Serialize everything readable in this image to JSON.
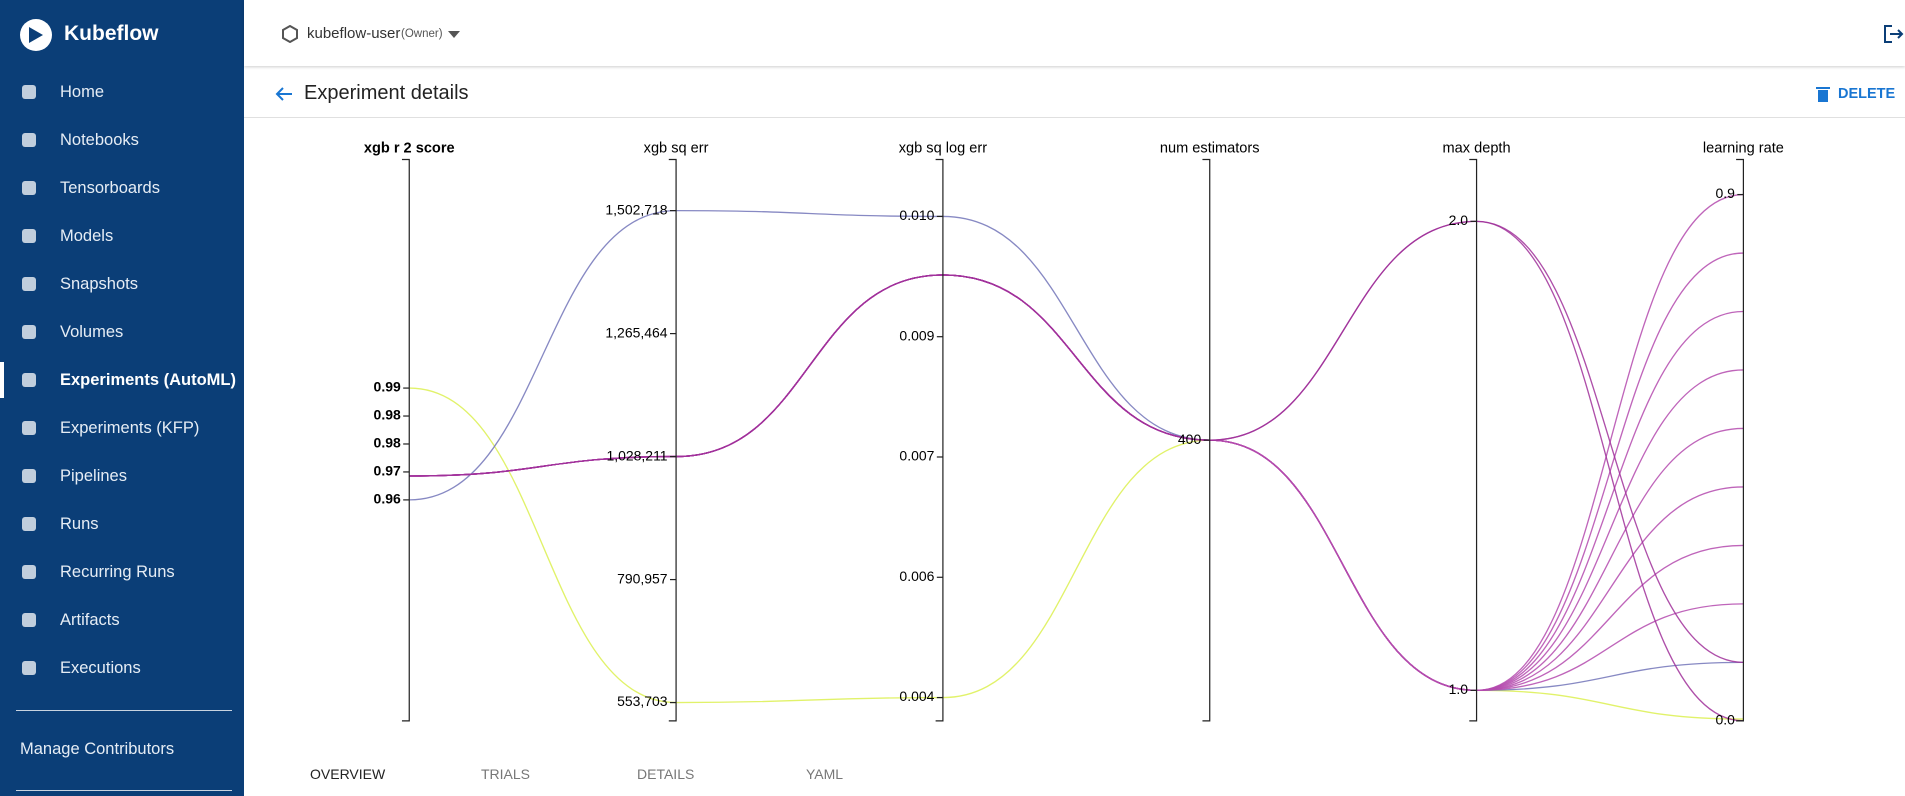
{
  "sidebar": {
    "brand": "Kubeflow",
    "items": [
      "Home",
      "Notebooks",
      "Tensorboards",
      "Models",
      "Snapshots",
      "Volumes",
      "Experiments (AutoML)",
      "Experiments (KFP)",
      "Pipelines",
      "Runs",
      "Recurring Runs",
      "Artifacts",
      "Executions"
    ],
    "active": 6,
    "footer": "Manage Contributors"
  },
  "topbar": {
    "namespace": "kubeflow-user",
    "role": "(Owner)"
  },
  "header": {
    "title": "Experiment details",
    "action": "DELETE"
  },
  "tabs": [
    "OVERVIEW",
    "TRIALS",
    "DETAILS",
    "YAML"
  ],
  "chart_data": {
    "type": "parallel",
    "dimensions": [
      {
        "label": "xgb r 2 score",
        "ylim": [
          0.9147,
          1.0392
        ],
        "yticks": [
          {
            "value": 0.9885,
            "label": "0.99"
          },
          {
            "value": 0.9823,
            "label": "0.98"
          },
          {
            "value": 0.9761,
            "label": "0.98"
          },
          {
            "value": 0.9699,
            "label": "0.97"
          },
          {
            "value": 0.9637,
            "label": "0.96"
          }
        ]
      },
      {
        "label": "xgb sq err",
        "ylim": [
          518467,
          1601378
        ],
        "yticks": [
          {
            "value": 553703,
            "label": "553,703"
          },
          {
            "value": 790957,
            "label": "790,957"
          },
          {
            "value": 1028211,
            "label": "1,028,211"
          },
          {
            "value": 1265464,
            "label": "1,265,464"
          },
          {
            "value": 1502718,
            "label": "1,502,718"
          }
        ]
      },
      {
        "label": "xgb sq log err",
        "ylim": [
          0.00401,
          0.01101
        ],
        "yticks": [
          {
            "value": 0.0043,
            "label": "0.004"
          },
          {
            "value": 0.0058,
            "label": "0.006"
          },
          {
            "value": 0.0073,
            "label": "0.007"
          },
          {
            "value": 0.0088,
            "label": "0.009"
          },
          {
            "value": 0.0103,
            "label": "0.010"
          }
        ]
      },
      {
        "label": "num estimators",
        "ylim": [
          0,
          800
        ],
        "yticks": [
          400
        ]
      },
      {
        "label": "max depth",
        "ylim": [
          0.935,
          2.132
        ],
        "yticks": [
          {
            "value": 1,
            "label": "1.0"
          },
          {
            "value": 2,
            "label": "2.0"
          }
        ]
      },
      {
        "label": "learning rate",
        "ylim": [
          0,
          0.96
        ],
        "yticks": [
          {
            "value": 0,
            "label": "0.0"
          },
          0.9
        ]
      }
    ],
    "series": [
      {
        "color": "#dcf050",
        "values": [
          0.9885,
          553703,
          0.0043,
          400,
          1,
          0.003
        ]
      },
      {
        "color": "#7274b8",
        "values": [
          0.9637,
          1502718,
          0.0103,
          400,
          1,
          0.1
        ]
      },
      {
        "color": "#b44aae",
        "values": [
          0.969,
          1028211,
          0.00957,
          400,
          1,
          0.9
        ]
      },
      {
        "color": "#b44aae",
        "values": [
          0.969,
          1028211,
          0.00957,
          400,
          1,
          0.8
        ]
      },
      {
        "color": "#b44aae",
        "values": [
          0.969,
          1028211,
          0.00957,
          400,
          1,
          0.7
        ]
      },
      {
        "color": "#b44aae",
        "values": [
          0.969,
          1028211,
          0.00957,
          400,
          1,
          0.6
        ]
      },
      {
        "color": "#b44aae",
        "values": [
          0.969,
          1028211,
          0.00957,
          400,
          1,
          0.5
        ]
      },
      {
        "color": "#b44aae",
        "values": [
          0.969,
          1028211,
          0.00957,
          400,
          1,
          0.4
        ]
      },
      {
        "color": "#b44aae",
        "values": [
          0.969,
          1028211,
          0.00957,
          400,
          1,
          0.3
        ]
      },
      {
        "color": "#b44aae",
        "values": [
          0.969,
          1028211,
          0.00957,
          400,
          1,
          0.2
        ]
      },
      {
        "color": "#a0309a",
        "values": [
          0.969,
          1028211,
          0.00957,
          400,
          2,
          0.1
        ]
      },
      {
        "color": "#a0309a",
        "values": [
          0.969,
          1028211,
          0.00957,
          400,
          2,
          0
        ]
      }
    ]
  }
}
